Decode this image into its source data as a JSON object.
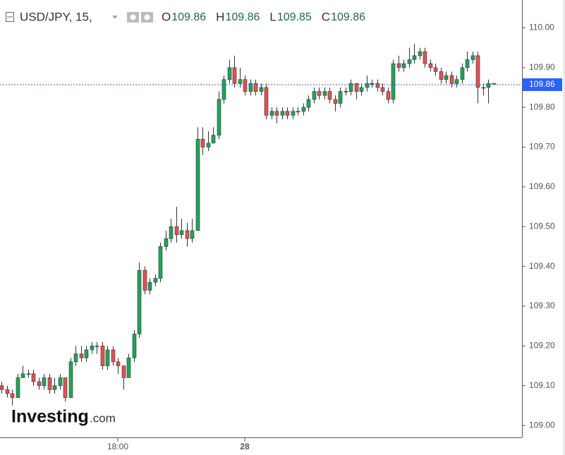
{
  "chart_data": {
    "type": "candlestick",
    "symbol": "USD/JPY, 15,",
    "legend_ohlc": [
      {
        "key": "O",
        "value": "109.86"
      },
      {
        "key": "H",
        "value": "109.86"
      },
      {
        "key": "L",
        "value": "109.85"
      },
      {
        "key": "C",
        "value": "109.86"
      }
    ],
    "watermark": {
      "brand": "Investing",
      "suffix": ".com"
    },
    "up_color": "#21a35b",
    "down_color": "#e25252",
    "last_price": {
      "value": 109.857,
      "label": "109.86",
      "color": "#2962ff"
    },
    "xlim": [
      -0.27,
      98.4
    ],
    "xticks": [
      {
        "value": 22,
        "label": "18:00"
      },
      {
        "value": 46,
        "label": "28"
      }
    ],
    "ylim": [
      108.97,
      110.07
    ],
    "yticks": [
      {
        "value": 110,
        "label": "110.00"
      },
      {
        "value": 109.9,
        "label": "109.90"
      },
      {
        "value": 109.8,
        "label": "109.80"
      },
      {
        "value": 109.7,
        "label": "109.70"
      },
      {
        "value": 109.6,
        "label": "109.60"
      },
      {
        "value": 109.5,
        "label": "109.50"
      },
      {
        "value": 109.4,
        "label": "109.40"
      },
      {
        "value": 109.3,
        "label": "109.30"
      },
      {
        "value": 109.2,
        "label": "109.20"
      },
      {
        "value": 109.1,
        "label": "109.10"
      },
      {
        "value": 109,
        "label": "109.00"
      }
    ],
    "open": [
      109.1,
      109.09,
      109.08,
      109.07,
      109.12,
      109.13,
      109.13,
      109.11,
      109.1,
      109.12,
      109.09,
      109.1,
      109.12,
      109.07,
      109.16,
      109.18,
      109.17,
      109.19,
      109.2,
      109.2,
      109.15,
      109.19,
      109.16,
      109.15,
      109.12,
      109.17,
      109.23,
      109.39,
      109.34,
      109.36,
      109.37,
      109.45,
      109.47,
      109.5,
      109.48,
      109.49,
      109.47,
      109.49,
      109.72,
      109.7,
      109.71,
      109.73,
      109.82,
      109.87,
      109.9,
      109.86,
      109.87,
      109.84,
      109.86,
      109.84,
      109.85,
      109.78,
      109.79,
      109.78,
      109.79,
      109.78,
      109.79,
      109.79,
      109.8,
      109.82,
      109.84,
      109.83,
      109.84,
      109.82,
      109.81,
      109.84,
      109.84,
      109.86,
      109.84,
      109.85,
      109.86,
      109.86,
      109.85,
      109.84,
      109.82,
      109.91,
      109.9,
      109.91,
      109.92,
      109.93,
      109.94,
      109.91,
      109.9,
      109.89,
      109.87,
      109.88,
      109.86,
      109.87,
      109.9,
      109.92,
      109.93,
      109.85,
      109.85,
      109.86
    ],
    "high": [
      109.11,
      109.1,
      109.09,
      109.13,
      109.15,
      109.14,
      109.14,
      109.12,
      109.13,
      109.13,
      109.12,
      109.13,
      109.12,
      109.17,
      109.2,
      109.2,
      109.2,
      109.21,
      109.21,
      109.21,
      109.2,
      109.2,
      109.17,
      109.15,
      109.18,
      109.24,
      109.41,
      109.4,
      109.37,
      109.38,
      109.46,
      109.49,
      109.52,
      109.55,
      109.52,
      109.51,
      109.52,
      109.75,
      109.75,
      109.74,
      109.75,
      109.84,
      109.88,
      109.92,
      109.93,
      109.9,
      109.88,
      109.87,
      109.87,
      109.86,
      109.86,
      109.8,
      109.8,
      109.8,
      109.8,
      109.8,
      109.8,
      109.81,
      109.83,
      109.85,
      109.85,
      109.85,
      109.85,
      109.83,
      109.85,
      109.85,
      109.87,
      109.86,
      109.86,
      109.88,
      109.87,
      109.87,
      109.86,
      109.85,
      109.92,
      109.93,
      109.92,
      109.95,
      109.96,
      109.95,
      109.95,
      109.92,
      109.91,
      109.9,
      109.89,
      109.89,
      109.88,
      109.91,
      109.94,
      109.94,
      109.94,
      109.86,
      109.87,
      109.86
    ],
    "low": [
      109.08,
      109.07,
      109.05,
      109.07,
      109.12,
      109.12,
      109.1,
      109.09,
      109.09,
      109.08,
      109.08,
      109.09,
      109.06,
      109.07,
      109.15,
      109.16,
      109.16,
      109.18,
      109.18,
      109.14,
      109.14,
      109.15,
      109.13,
      109.09,
      109.12,
      109.16,
      109.22,
      109.33,
      109.33,
      109.35,
      109.36,
      109.44,
      109.46,
      109.46,
      109.47,
      109.45,
      109.46,
      109.49,
      109.68,
      109.69,
      109.72,
      109.72,
      109.81,
      109.86,
      109.85,
      109.85,
      109.83,
      109.83,
      109.83,
      109.83,
      109.77,
      109.77,
      109.76,
      109.77,
      109.77,
      109.77,
      109.78,
      109.78,
      109.79,
      109.81,
      109.82,
      109.82,
      109.81,
      109.79,
      109.8,
      109.83,
      109.83,
      109.82,
      109.83,
      109.84,
      109.85,
      109.84,
      109.83,
      109.81,
      109.81,
      109.89,
      109.89,
      109.9,
      109.91,
      109.92,
      109.9,
      109.89,
      109.88,
      109.86,
      109.86,
      109.85,
      109.85,
      109.86,
      109.89,
      109.91,
      109.81,
      109.83,
      109.81,
      109.86
    ],
    "close": [
      109.09,
      109.08,
      109.07,
      109.12,
      109.13,
      109.13,
      109.11,
      109.1,
      109.12,
      109.09,
      109.1,
      109.12,
      109.07,
      109.16,
      109.18,
      109.17,
      109.19,
      109.2,
      109.2,
      109.15,
      109.19,
      109.16,
      109.15,
      109.12,
      109.17,
      109.23,
      109.39,
      109.34,
      109.36,
      109.37,
      109.45,
      109.47,
      109.5,
      109.48,
      109.49,
      109.47,
      109.49,
      109.72,
      109.7,
      109.71,
      109.73,
      109.82,
      109.87,
      109.9,
      109.86,
      109.87,
      109.84,
      109.86,
      109.84,
      109.85,
      109.78,
      109.79,
      109.78,
      109.79,
      109.78,
      109.79,
      109.79,
      109.8,
      109.82,
      109.84,
      109.83,
      109.84,
      109.82,
      109.81,
      109.84,
      109.84,
      109.86,
      109.84,
      109.85,
      109.86,
      109.86,
      109.85,
      109.84,
      109.82,
      109.91,
      109.9,
      109.91,
      109.92,
      109.93,
      109.94,
      109.91,
      109.9,
      109.89,
      109.87,
      109.88,
      109.86,
      109.87,
      109.9,
      109.92,
      109.93,
      109.85,
      109.85,
      109.86,
      109.86
    ]
  }
}
